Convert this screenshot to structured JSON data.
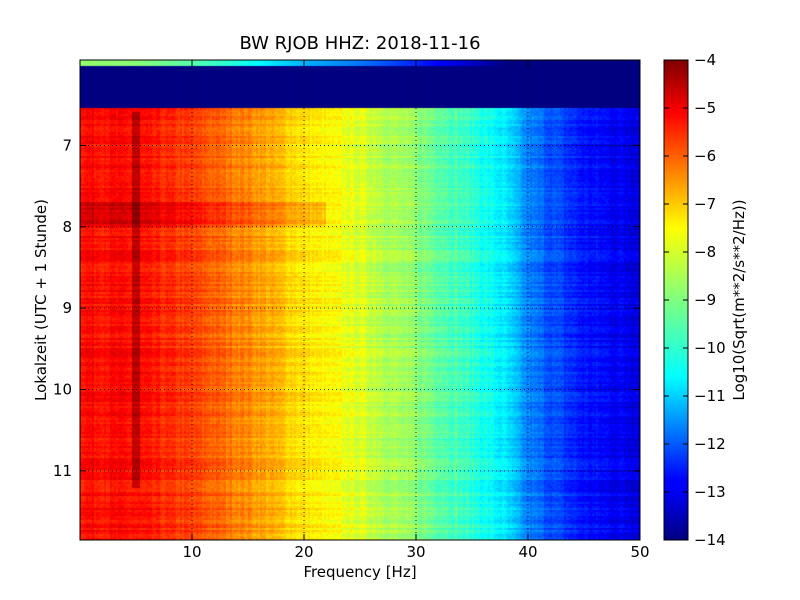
{
  "chart_data": {
    "type": "heatmap",
    "title": "BW RJOB HHZ: 2018-11-16",
    "xlabel": "Frequency [Hz]",
    "ylabel": "Lokalzeit (UTC + 1 Stunde)",
    "xlim": [
      0,
      50
    ],
    "ylim": [
      5.95,
      11.85
    ],
    "y_inverted": true,
    "grid": "dotted",
    "x_ticks": [
      10,
      20,
      30,
      40,
      50
    ],
    "x_tick_labels": [
      "10",
      "20",
      "30",
      "40",
      "50"
    ],
    "y_ticks": [
      7,
      8,
      9,
      10,
      11
    ],
    "y_tick_labels": [
      "7",
      "8",
      "9",
      "10",
      "11"
    ],
    "colormap": "jet",
    "colorbar": {
      "label": "Log10(Sqrt(m**2/s**2/Hz))",
      "range": [
        -14,
        -4
      ],
      "ticks": [
        -4,
        -5,
        -6,
        -7,
        -8,
        -9,
        -10,
        -11,
        -12,
        -13,
        -14
      ],
      "tick_labels": [
        "−4",
        "−5",
        "−6",
        "−7",
        "−8",
        "−9",
        "−10",
        "−11",
        "−12",
        "−13",
        "−14"
      ]
    },
    "gap": {
      "from_time": 6.03,
      "to_time": 6.55,
      "level": -14
    },
    "spectrum_profile": [
      {
        "f": 0,
        "level": -5.3
      },
      {
        "f": 5,
        "level": -5.4
      },
      {
        "f": 10,
        "level": -5.9
      },
      {
        "f": 15,
        "level": -6.6
      },
      {
        "f": 20,
        "level": -7.5
      },
      {
        "f": 25,
        "level": -8.1
      },
      {
        "f": 30,
        "level": -8.9
      },
      {
        "f": 35,
        "level": -9.8
      },
      {
        "f": 38,
        "level": -10.5
      },
      {
        "f": 40,
        "level": -11.5
      },
      {
        "f": 45,
        "level": -12.6
      },
      {
        "f": 50,
        "level": -13.0
      }
    ]
  }
}
